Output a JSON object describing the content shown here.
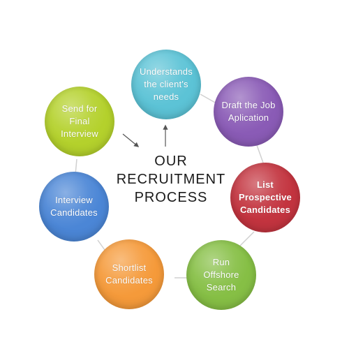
{
  "title": {
    "lines": [
      "OUR",
      "RECRUITMENT",
      "PROCESS"
    ]
  },
  "steps": [
    {
      "label": "Understands\nthe client's\nneeds",
      "color": "#5cc3d6",
      "bold": false
    },
    {
      "label": "Draft the Job\nAplication",
      "color": "#8a5bb6",
      "bold": false
    },
    {
      "label": "List\nProspective\nCandidates",
      "color": "#c3343f",
      "bold": true
    },
    {
      "label": "Run\nOffshore\nSearch",
      "color": "#86bf45",
      "bold": false
    },
    {
      "label": "Shortlist\nCandidates",
      "color": "#f59a3a",
      "bold": false
    },
    {
      "label": "Interview\nCandidates",
      "color": "#4b86d6",
      "bold": false
    },
    {
      "label": "Send for\nFinal\nInterview",
      "color": "#b4d12c",
      "bold": false
    }
  ],
  "colors": {
    "connector": "#d0d0d0",
    "arrow": "#555555"
  }
}
